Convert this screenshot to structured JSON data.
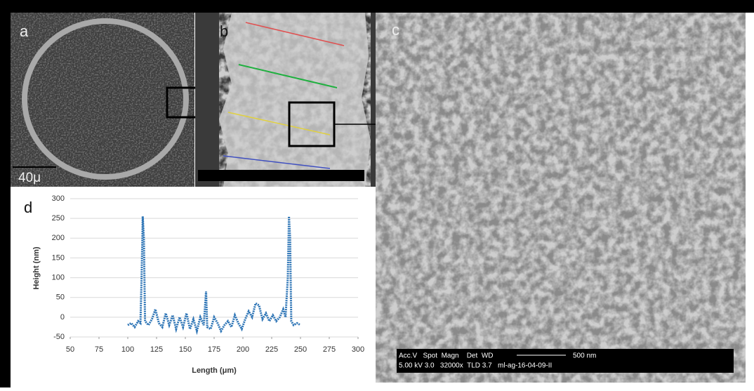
{
  "panels": {
    "a": {
      "label": "a",
      "scale_bar": "40μ"
    },
    "b": {
      "label": "b"
    },
    "c": {
      "label": "c",
      "info_header": "Acc.V   Spot  Magn    Det  WD",
      "scale": "500 nm",
      "info_values": "5.00 kV 3.0   32000x  TLD 3.7   ml-ag-16-04-09-II"
    },
    "d": {
      "label": "d"
    }
  },
  "chart_data": {
    "type": "line",
    "x_label": "Length (μm)",
    "y_label": "Height (nm)",
    "x": [
      100,
      103,
      106,
      109,
      111,
      112,
      113,
      114,
      115,
      118,
      121,
      124,
      127,
      130,
      133,
      136,
      139,
      142,
      145,
      148,
      151,
      154,
      157,
      160,
      163,
      166,
      168,
      169,
      172,
      175,
      178,
      181,
      184,
      187,
      190,
      193,
      196,
      199,
      202,
      205,
      208,
      211,
      214,
      217,
      220,
      223,
      226,
      229,
      232,
      235,
      237,
      239,
      240,
      241,
      242,
      244,
      247,
      250
    ],
    "series": [
      {
        "color": "#2e75b6",
        "values": [
          -20,
          -15,
          -25,
          -10,
          -15,
          100,
          255,
          200,
          -10,
          -20,
          -5,
          20,
          -15,
          -25,
          10,
          -20,
          5,
          -30,
          0,
          -25,
          10,
          -30,
          -5,
          -35,
          0,
          -20,
          65,
          -25,
          -30,
          0,
          -15,
          -35,
          -20,
          -10,
          -25,
          5,
          -15,
          -30,
          -5,
          15,
          0,
          35,
          30,
          -5,
          10,
          -10,
          5,
          -10,
          0,
          20,
          0,
          100,
          255,
          200,
          -10,
          -20,
          -15,
          -20
        ]
      }
    ],
    "xlim": [
      50,
      300
    ],
    "ylim": [
      -50,
      300
    ],
    "xticks": [
      50,
      75,
      100,
      125,
      150,
      175,
      200,
      225,
      250,
      275,
      300
    ],
    "yticks": [
      -50,
      0,
      50,
      100,
      150,
      200,
      250,
      300
    ],
    "grid": true
  }
}
